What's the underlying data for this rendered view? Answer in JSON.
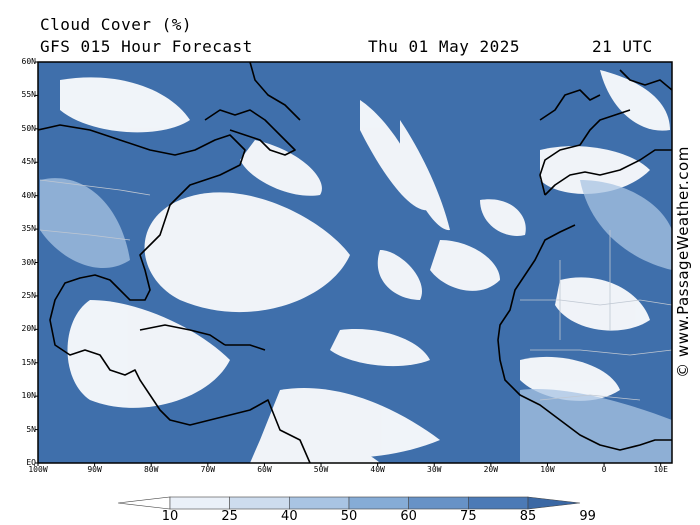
{
  "header": {
    "title": "Cloud Cover (%)",
    "subtitle": "GFS 015 Hour Forecast",
    "datetime": "Thu 01 May 2025",
    "utc": "21 UTC"
  },
  "credit": "© www.PassageWeather.com",
  "map": {
    "lat_labels": [
      "60N",
      "55N",
      "50N",
      "45N",
      "40N",
      "35N",
      "30N",
      "25N",
      "20N",
      "15N",
      "10N",
      "5N",
      "EQ"
    ],
    "lon_labels": [
      "100W",
      "90W",
      "80W",
      "70W",
      "60W",
      "50W",
      "40W",
      "30W",
      "20W",
      "10W",
      "0",
      "10E"
    ],
    "lat_range": [
      0,
      60
    ],
    "lon_range": [
      -100,
      12
    ]
  },
  "colorbar": {
    "labels": [
      "10",
      "25",
      "40",
      "50",
      "60",
      "75",
      "85",
      "99"
    ],
    "colors": [
      "#ffffff",
      "#eaf0f8",
      "#cddcee",
      "#a9c4e3",
      "#86acd6",
      "#6792c6",
      "#4c7ab6",
      "#3b68a4"
    ]
  }
}
